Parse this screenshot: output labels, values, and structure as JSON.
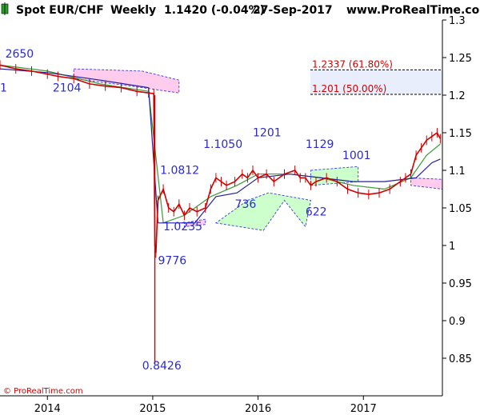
{
  "header": {
    "instrument": "Spot EUR/CHF",
    "interval": "Weekly",
    "quote": "1.1420 (-0.04%)",
    "date": "27-Sep-2017",
    "site": "www.ProRealTime.com"
  },
  "copyright": "© ProRealTime.com",
  "colors": {
    "candle": "#d00000",
    "price_line": "#d00000",
    "kijun": "#2020a0",
    "tenkan": "#3a9a3a",
    "cloud_bull": "#ccffcc",
    "cloud_bear": "#ffccee",
    "cloud_edge": "#3a3adc",
    "fib_band": "#e8eefc",
    "annotation": "#2a2ad0",
    "fib_text": "#d00000"
  },
  "chart_data": {
    "type": "line",
    "title": "Spot EUR/CHF Weekly",
    "ylim": [
      0.8,
      1.3
    ],
    "y_ticks": [
      "1.3",
      "1.25",
      "1.2",
      "1.15",
      "1.1",
      "1.05",
      "1",
      "0.95",
      "0.9",
      "0.85"
    ],
    "x_ticks": [
      "2014",
      "2015",
      "2016",
      "2017"
    ],
    "axis_side": "right",
    "grid": false,
    "fib_levels": [
      {
        "label": "1.2337 (61.80%)",
        "value": 1.2337
      },
      {
        "label": "1.201 (50.00%)",
        "value": 1.201
      }
    ],
    "annotations": [
      {
        "text": "2650",
        "x": 2013.6,
        "y": 1.25
      },
      {
        "text": "1",
        "x": 2013.55,
        "y": 1.205
      },
      {
        "text": "2104",
        "x": 2014.05,
        "y": 1.205
      },
      {
        "text": "1.0812",
        "x": 2015.07,
        "y": 1.095
      },
      {
        "text": "1.1050",
        "x": 2015.48,
        "y": 1.13
      },
      {
        "text": "1201",
        "x": 2015.95,
        "y": 1.145
      },
      {
        "text": "1129",
        "x": 2016.45,
        "y": 1.13
      },
      {
        "text": "1001",
        "x": 2016.8,
        "y": 1.115
      },
      {
        "text": "736",
        "x": 2015.78,
        "y": 1.05
      },
      {
        "text": "622",
        "x": 2016.45,
        "y": 1.04
      },
      {
        "text": "1.0235",
        "x": 2015.1,
        "y": 1.02
      },
      {
        "text": "9776",
        "x": 2015.05,
        "y": 0.975
      },
      {
        "text": "0.8426",
        "x": 2014.9,
        "y": 0.835
      }
    ],
    "series": [
      {
        "kind": "price",
        "x": [
          2013.55,
          2013.7,
          2013.85,
          2014.0,
          2014.1,
          2014.25,
          2014.4,
          2014.55,
          2014.7,
          2014.85,
          2014.96,
          2015.01,
          2015.02,
          2015.03,
          2015.05,
          2015.1,
          2015.15,
          2015.2,
          2015.25,
          2015.3,
          2015.35,
          2015.42,
          2015.5,
          2015.55,
          2015.6,
          2015.65,
          2015.7,
          2015.78,
          2015.85,
          2015.9,
          2015.95,
          2016.0,
          2016.08,
          2016.15,
          2016.25,
          2016.35,
          2016.4,
          2016.45,
          2016.5,
          2016.55,
          2016.65,
          2016.75,
          2016.85,
          2016.95,
          2017.05,
          2017.15,
          2017.25,
          2017.35,
          2017.4,
          2017.45,
          2017.5,
          2017.55,
          2017.6,
          2017.65,
          2017.7,
          2017.73
        ],
        "y": [
          1.24,
          1.235,
          1.232,
          1.228,
          1.225,
          1.222,
          1.215,
          1.212,
          1.21,
          1.205,
          1.203,
          1.202,
          1.0,
          0.99,
          1.06,
          1.075,
          1.05,
          1.045,
          1.055,
          1.04,
          1.05,
          1.045,
          1.05,
          1.075,
          1.09,
          1.085,
          1.08,
          1.085,
          1.095,
          1.09,
          1.1,
          1.09,
          1.095,
          1.085,
          1.095,
          1.1,
          1.09,
          1.09,
          1.08,
          1.085,
          1.09,
          1.085,
          1.075,
          1.07,
          1.068,
          1.07,
          1.075,
          1.085,
          1.09,
          1.095,
          1.12,
          1.13,
          1.14,
          1.145,
          1.15,
          1.142
        ]
      },
      {
        "kind": "tenkan",
        "x": [
          2013.55,
          2014.0,
          2014.5,
          2014.96,
          2015.1,
          2015.3,
          2015.55,
          2015.8,
          2016.0,
          2016.3,
          2016.6,
          2016.9,
          2017.2,
          2017.45,
          2017.6,
          2017.73
        ],
        "y": [
          1.24,
          1.232,
          1.215,
          1.205,
          1.03,
          1.04,
          1.065,
          1.08,
          1.095,
          1.095,
          1.09,
          1.08,
          1.075,
          1.09,
          1.12,
          1.135
        ]
      },
      {
        "kind": "kijun",
        "x": [
          2013.55,
          2014.0,
          2014.5,
          2014.96,
          2015.05,
          2015.4,
          2015.6,
          2015.8,
          2016.0,
          2016.3,
          2016.6,
          2016.9,
          2017.2,
          2017.5,
          2017.65,
          2017.73
        ],
        "y": [
          1.235,
          1.23,
          1.22,
          1.21,
          1.03,
          1.03,
          1.065,
          1.07,
          1.09,
          1.095,
          1.09,
          1.085,
          1.085,
          1.09,
          1.11,
          1.115
        ]
      }
    ]
  }
}
